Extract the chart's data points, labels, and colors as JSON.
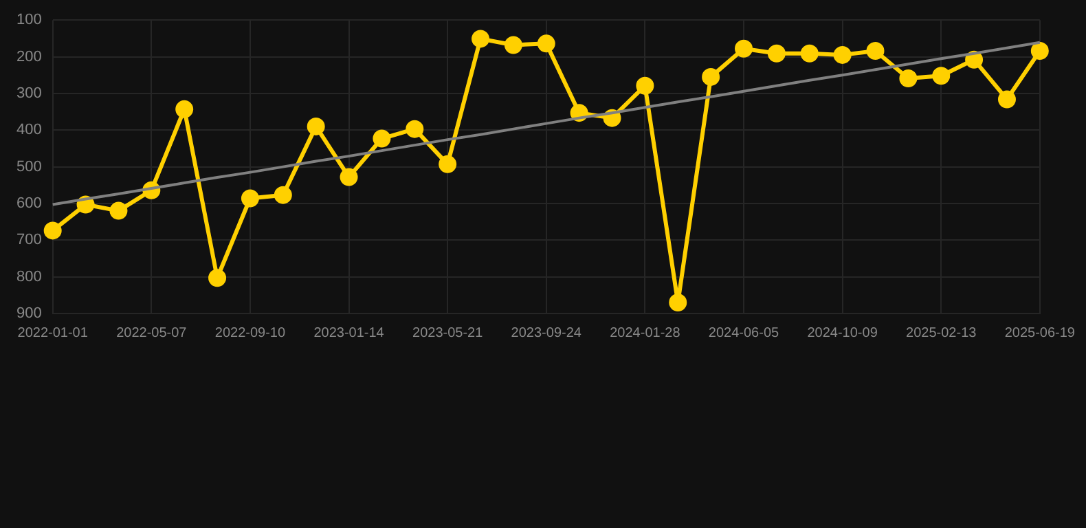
{
  "chart_data": {
    "type": "line",
    "categories": [
      "2022-01-01",
      null,
      null,
      "2022-05-07",
      null,
      null,
      "2022-09-10",
      null,
      null,
      "2023-01-14",
      null,
      null,
      "2023-05-21",
      null,
      null,
      "2023-09-24",
      null,
      null,
      "2024-01-28",
      null,
      null,
      "2024-06-05",
      null,
      null,
      "2024-10-09",
      null,
      null,
      "2025-02-13",
      null,
      null,
      "2025-06-19"
    ],
    "series": [
      {
        "color": "#ffd000",
        "marker": "circle",
        "values": [
          674,
          603,
          620,
          564,
          343,
          803,
          586,
          577,
          390,
          528,
          423,
          397,
          493,
          151,
          168,
          164,
          353,
          367,
          279,
          870,
          255,
          178,
          191,
          191,
          195,
          184,
          259,
          252,
          208,
          316,
          184
        ]
      },
      {
        "color": "#808080",
        "marker": "none",
        "values": [
          603,
          588,
          574,
          559,
          544,
          529,
          515,
          500,
          485,
          471,
          456,
          441,
          426,
          412,
          397,
          382,
          367,
          353,
          338,
          323,
          309,
          294,
          279,
          264,
          250,
          235,
          220,
          205,
          191,
          176,
          161
        ]
      }
    ],
    "ylim": [
      900,
      100
    ],
    "yticks": [
      100,
      200,
      300,
      400,
      500,
      600,
      700,
      800,
      900
    ],
    "grid": true,
    "legend": false
  }
}
